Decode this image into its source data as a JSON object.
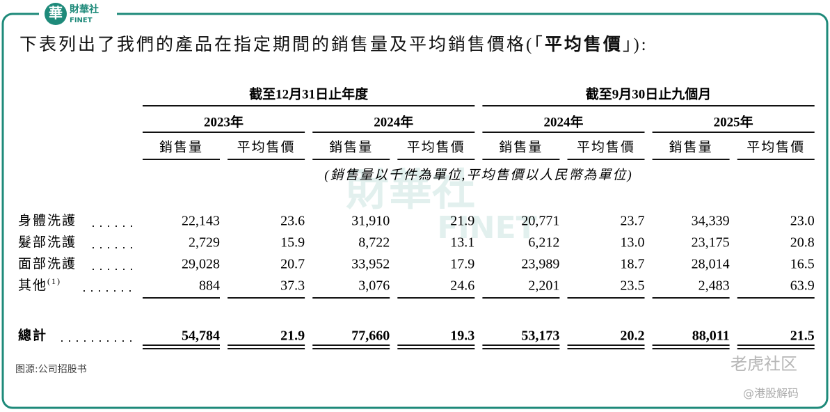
{
  "logo": {
    "mark": "華",
    "name": "財華社",
    "sub": "FINET"
  },
  "intro": {
    "parts": [
      "下表列出了我們的產品在指定期間的銷售量及平均銷售價格(「",
      "平均售價",
      "」):"
    ]
  },
  "table": {
    "period_headers": [
      "截至12月31日止年度",
      "截至9月30日止九個月"
    ],
    "years": [
      "2023年",
      "2024年",
      "2024年",
      "2025年"
    ],
    "subheaders": [
      "銷售量",
      "平均售價",
      "銷售量",
      "平均售價",
      "銷售量",
      "平均售價",
      "銷售量",
      "平均售價"
    ],
    "unit_note": "(銷售量以千件為單位,平均售價以人民幣為單位)",
    "rows": [
      {
        "label": "身體洗護",
        "cells": [
          "22,143",
          "23.6",
          "31,910",
          "21.9",
          "20,771",
          "23.7",
          "34,339",
          "23.0"
        ]
      },
      {
        "label": "髮部洗護",
        "cells": [
          "2,729",
          "15.9",
          "8,722",
          "13.1",
          "6,212",
          "13.0",
          "23,175",
          "20.8"
        ]
      },
      {
        "label": "面部洗護",
        "cells": [
          "29,028",
          "20.7",
          "33,952",
          "17.9",
          "23,989",
          "18.7",
          "28,014",
          "16.5"
        ]
      },
      {
        "label": "其他",
        "footnote": "(1)",
        "cells": [
          "884",
          "37.3",
          "3,076",
          "24.6",
          "2,201",
          "23.5",
          "2,483",
          "63.9"
        ]
      }
    ],
    "total": {
      "label": "總計",
      "cells": [
        "54,784",
        "21.9",
        "77,660",
        "19.3",
        "53,173",
        "20.2",
        "88,011",
        "21.5"
      ]
    }
  },
  "source": "图源:公司招股书",
  "watermarks": [
    "財華社",
    "FINET",
    "老虎社区",
    "@港股解码"
  ]
}
